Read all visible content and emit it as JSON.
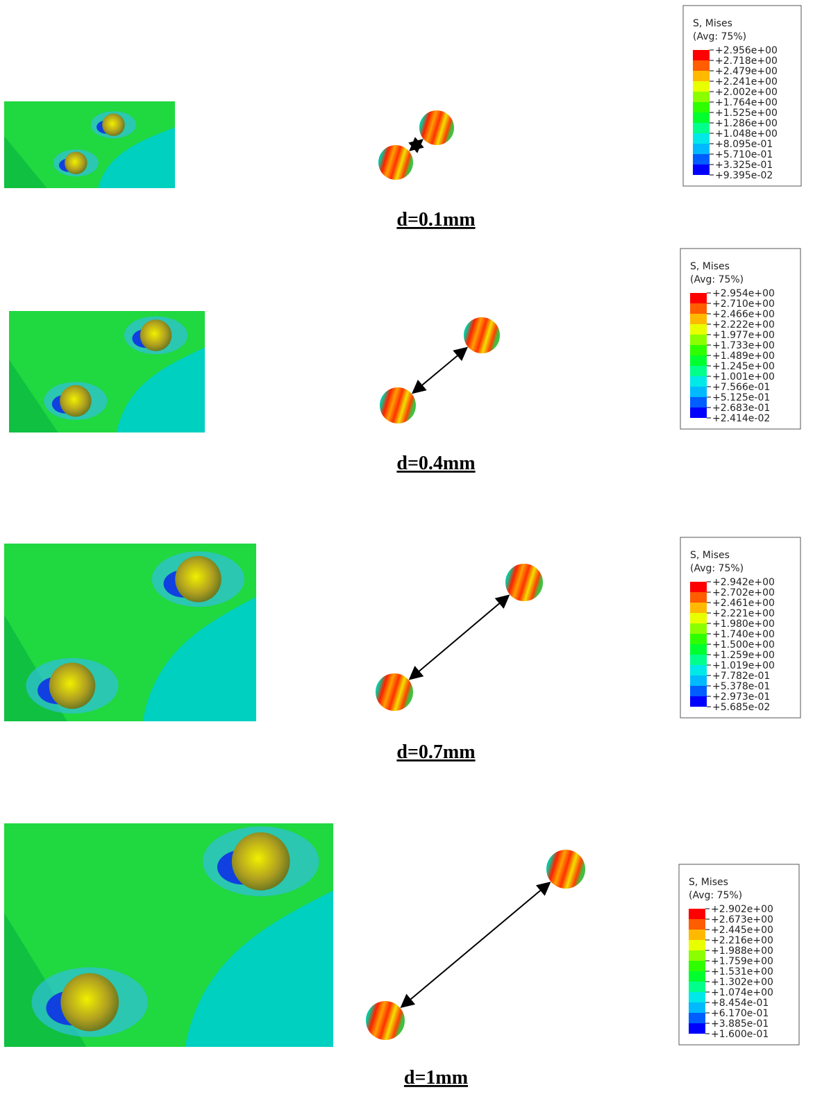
{
  "panels": [
    {
      "label": "d=0.1mm",
      "legend": {
        "title": "S, Mises",
        "subtitle": "(Avg: 75%)",
        "values": [
          "+2.956e+00",
          "+2.718e+00",
          "+2.479e+00",
          "+2.241e+00",
          "+2.002e+00",
          "+1.764e+00",
          "+1.525e+00",
          "+1.286e+00",
          "+1.048e+00",
          "+8.095e-01",
          "+5.710e-01",
          "+3.325e-01",
          "+9.395e-02"
        ]
      }
    },
    {
      "label": "d=0.4mm",
      "legend": {
        "title": "S, Mises",
        "subtitle": "(Avg: 75%)",
        "values": [
          "+2.954e+00",
          "+2.710e+00",
          "+2.466e+00",
          "+2.222e+00",
          "+1.977e+00",
          "+1.733e+00",
          "+1.489e+00",
          "+1.245e+00",
          "+1.001e+00",
          "+7.566e-01",
          "+5.125e-01",
          "+2.683e-01",
          "+2.414e-02"
        ]
      }
    },
    {
      "label": "d=0.7mm",
      "legend": {
        "title": "S, Mises",
        "subtitle": "(Avg: 75%)",
        "values": [
          "+2.942e+00",
          "+2.702e+00",
          "+2.461e+00",
          "+2.221e+00",
          "+1.980e+00",
          "+1.740e+00",
          "+1.500e+00",
          "+1.259e+00",
          "+1.019e+00",
          "+7.782e-01",
          "+5.378e-01",
          "+2.973e-01",
          "+5.685e-02"
        ]
      }
    },
    {
      "label": "d=1mm",
      "legend": {
        "title": "S, Mises",
        "subtitle": "(Avg: 75%)",
        "values": [
          "+2.902e+00",
          "+2.673e+00",
          "+2.445e+00",
          "+2.216e+00",
          "+1.988e+00",
          "+1.759e+00",
          "+1.531e+00",
          "+1.302e+00",
          "+1.074e+00",
          "+8.454e-01",
          "+6.170e-01",
          "+3.885e-01",
          "+1.600e-01"
        ]
      }
    }
  ]
}
